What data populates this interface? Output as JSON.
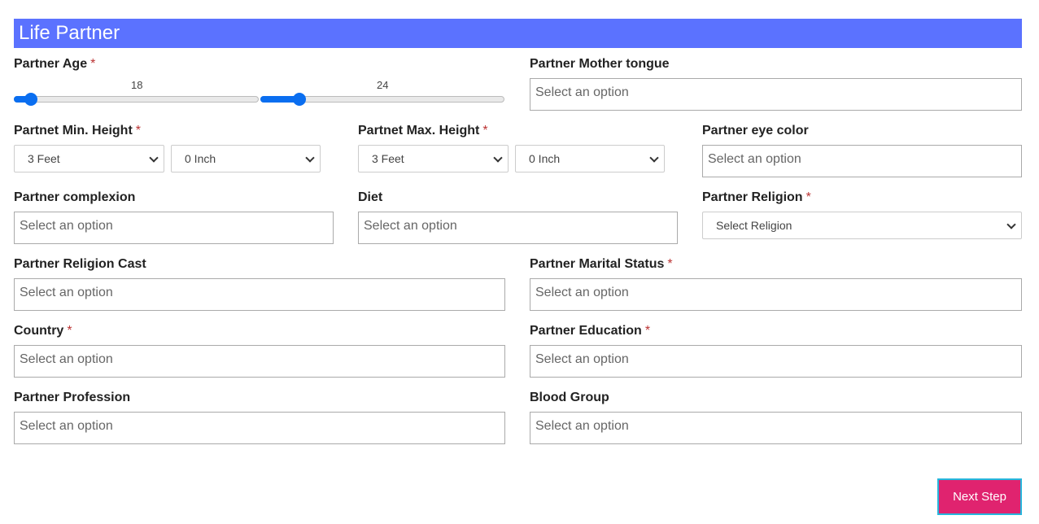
{
  "header": {
    "title": "Life Partner"
  },
  "required_mark": "*",
  "age": {
    "label": "Partner Age",
    "min_value": "18",
    "max_value": "24"
  },
  "mother_tongue": {
    "label": "Partner Mother tongue",
    "placeholder": "Select an option"
  },
  "min_height": {
    "label": "Partnet Min. Height",
    "feet": "3 Feet",
    "inch": "0 Inch"
  },
  "max_height": {
    "label": "Partnet Max. Height",
    "feet": "3 Feet",
    "inch": "0 Inch"
  },
  "eye_color": {
    "label": "Partner eye color",
    "placeholder": "Select an option"
  },
  "complexion": {
    "label": "Partner complexion",
    "placeholder": "Select an option"
  },
  "diet": {
    "label": "Diet",
    "placeholder": "Select an option"
  },
  "religion": {
    "label": "Partner Religion",
    "value": "Select Religion"
  },
  "religion_cast": {
    "label": "Partner Religion Cast",
    "placeholder": "Select an option"
  },
  "marital_status": {
    "label": "Partner Marital Status",
    "placeholder": "Select an option"
  },
  "country": {
    "label": "Country",
    "placeholder": "Select an option"
  },
  "education": {
    "label": "Partner Education",
    "placeholder": "Select an option"
  },
  "profession": {
    "label": "Partner Profession",
    "placeholder": "Select an option"
  },
  "blood_group": {
    "label": "Blood Group",
    "placeholder": "Select an option"
  },
  "next_button": "Next Step",
  "colors": {
    "header": "#5b72ff",
    "slider": "#0a6ef0",
    "button": "#e0236f"
  }
}
